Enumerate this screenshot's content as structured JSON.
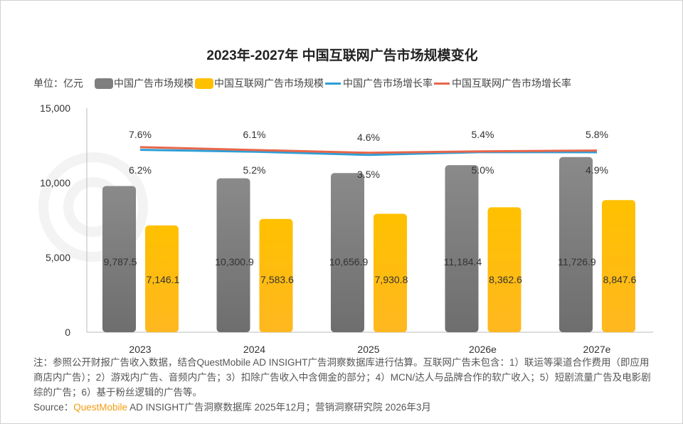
{
  "title": "2023年-2027年 中国互联网广告市场规模变化",
  "unit_label": "单位：亿元",
  "note": "注：参照公开财报广告收入数据，结合QuestMobile AD INSIGHT广告洞察数据库进行估算。互联网广告未包含：1）联运等渠道合作费用（即应用商店内广告）；2）游戏内广告、音频内广告；3）扣除广告收入中含佣金的部分；4）MCN/达人与品牌合作的软广收入；5）短剧流量广告及电影剧综的广告；6）基于粉丝逻辑的广告等。",
  "source": {
    "prefix": "Source：",
    "brand": "QuestMobile",
    "rest": " AD INSIGHT广告洞察数据库 2025年12月；营销洞察研究院 2026年3月"
  },
  "watermark": "QUESTMOBILE",
  "chart_data": {
    "type": "bar+line",
    "title": "2023年-2027年 中国互联网广告市场规模变化",
    "categories": [
      "2023",
      "2024",
      "2025",
      "2026e",
      "2027e"
    ],
    "ylim": [
      0,
      15000
    ],
    "yticks": [
      "0",
      "5,000",
      "10,000",
      "15,000"
    ],
    "legend_position": "top",
    "grid": false,
    "series": [
      {
        "name": "中国广告市场规模",
        "type": "bar",
        "color": "#7f7f7f",
        "values": [
          9787.5,
          10300.9,
          10656.9,
          11184.4,
          11726.9
        ],
        "labels": [
          "9,787.5",
          "10,300.9",
          "10,656.9",
          "11,184.4",
          "11,726.9"
        ]
      },
      {
        "name": "中国互联网广告市场规模",
        "type": "bar",
        "color": "#ffc000",
        "values": [
          7146.1,
          7583.6,
          7930.8,
          8362.6,
          8847.6
        ],
        "labels": [
          "7,146.1",
          "7,583.6",
          "7,930.8",
          "8,362.6",
          "8,847.6"
        ]
      },
      {
        "name": "中国广告市场增长率",
        "type": "line",
        "color": "#2e9fd6",
        "values": [
          6.2,
          5.2,
          3.5,
          5.0,
          4.9
        ],
        "labels": [
          "6.2%",
          "5.2%",
          "3.5%",
          "5.0%",
          "4.9%"
        ]
      },
      {
        "name": "中国互联网广告市场增长率",
        "type": "line",
        "color": "#e8664a",
        "values": [
          7.6,
          6.1,
          4.6,
          5.4,
          5.8
        ],
        "labels": [
          "7.6%",
          "6.1%",
          "4.6%",
          "5.4%",
          "5.8%"
        ]
      }
    ]
  }
}
